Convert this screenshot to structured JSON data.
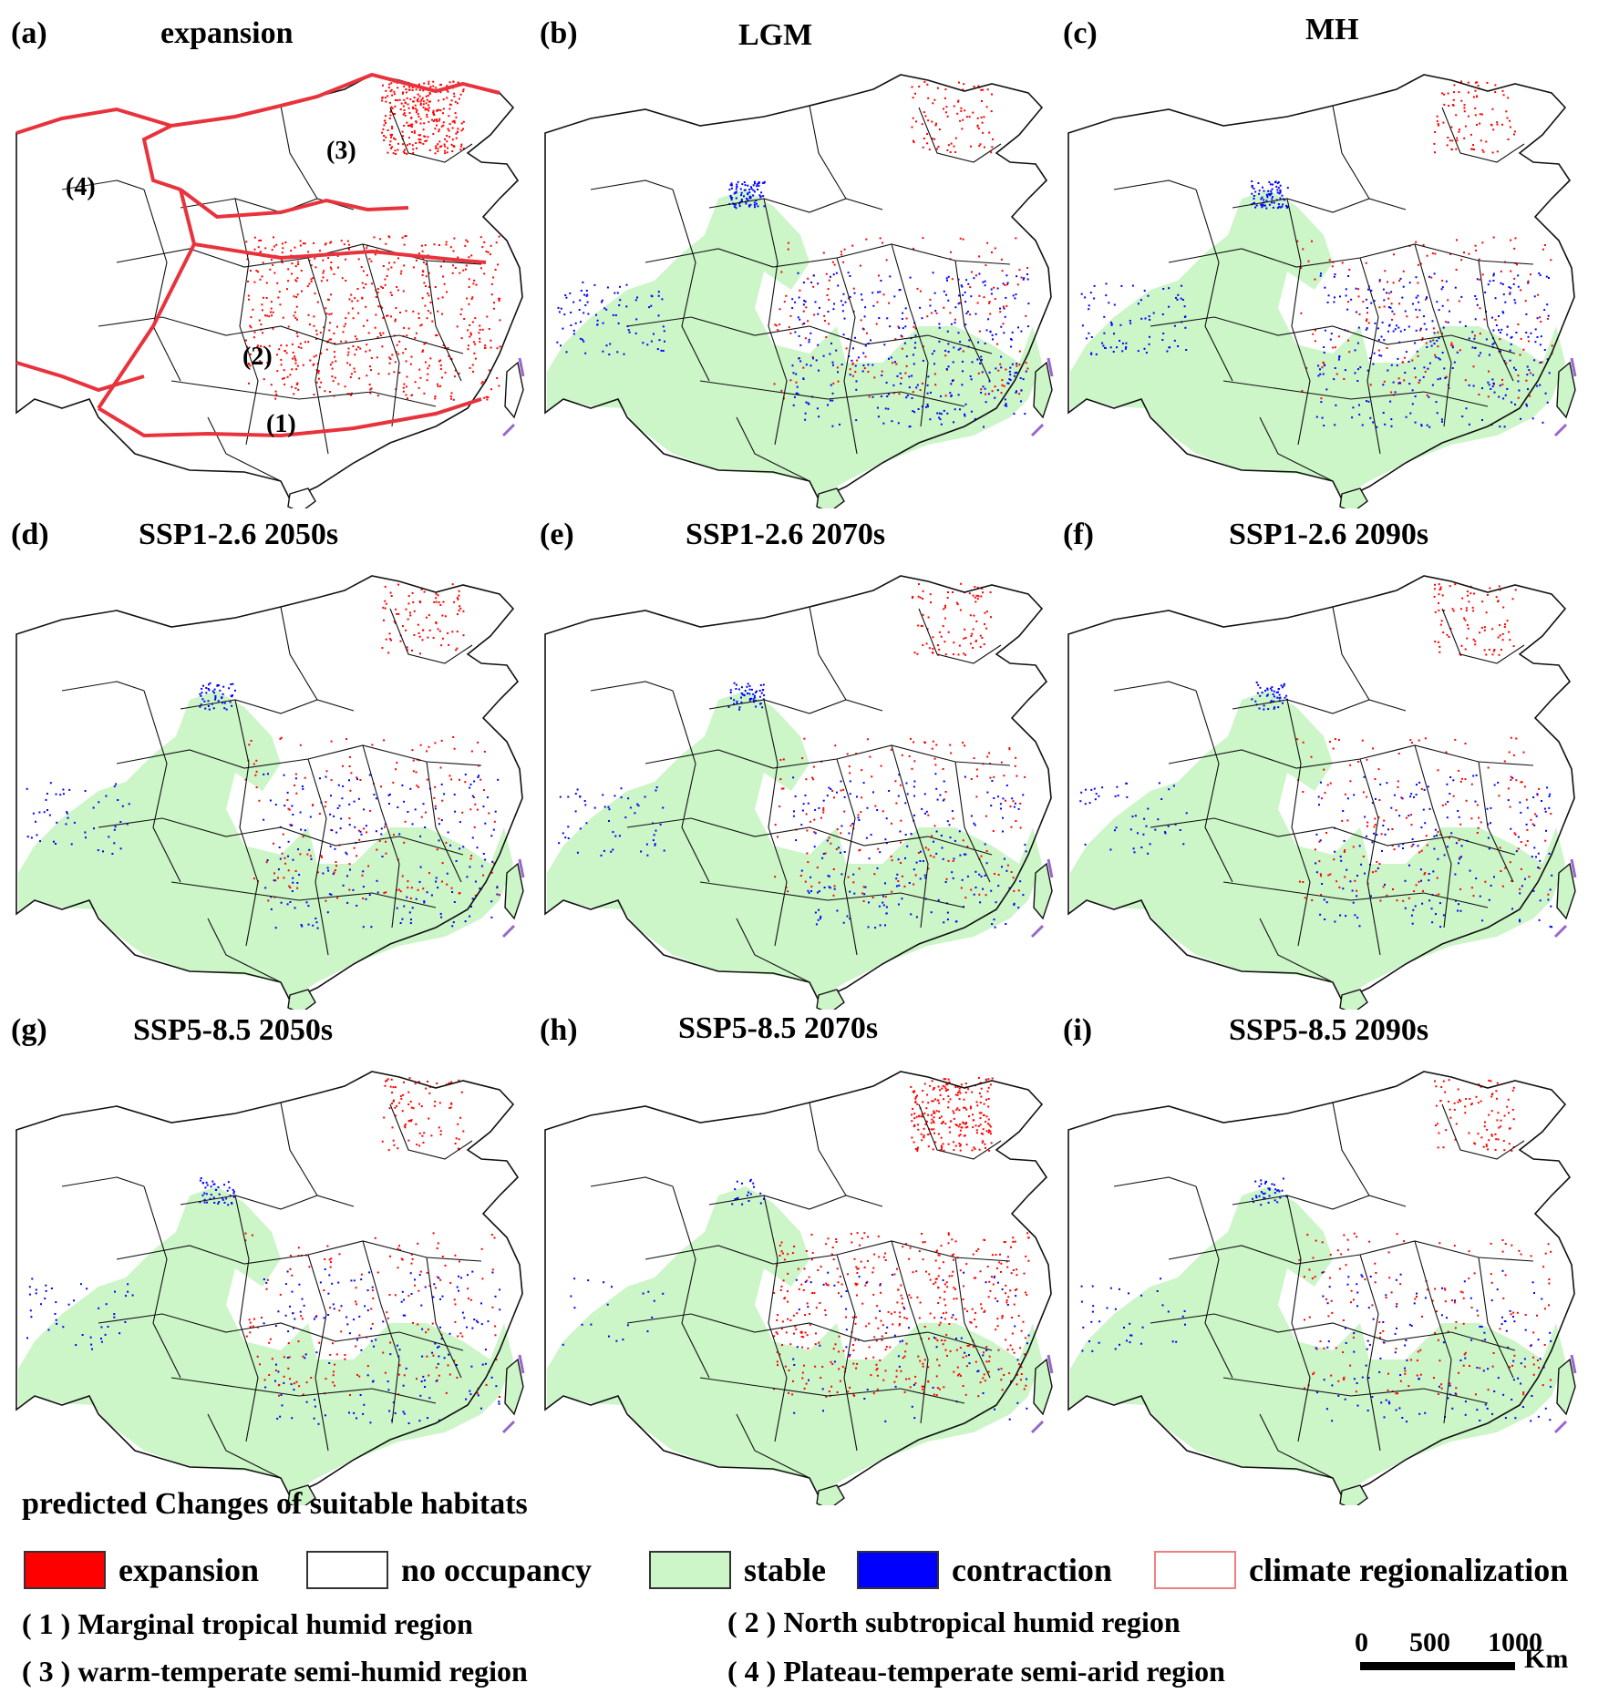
{
  "panels": [
    {
      "label": "(a)",
      "title": "expansion",
      "kind": "regionalization"
    },
    {
      "label": "(b)",
      "title": "LGM",
      "kind": "change"
    },
    {
      "label": "(c)",
      "title": "MH",
      "kind": "change"
    },
    {
      "label": "(d)",
      "title": "SSP1-2.6 2050s",
      "kind": "change"
    },
    {
      "label": "(e)",
      "title": "SSP1-2.6 2070s",
      "kind": "change"
    },
    {
      "label": "(f)",
      "title": "SSP1-2.6 2090s",
      "kind": "change"
    },
    {
      "label": "(g)",
      "title": "SSP5-8.5 2050s",
      "kind": "change"
    },
    {
      "label": "(h)",
      "title": "SSP5-8.5 2070s",
      "kind": "change"
    },
    {
      "label": "(i)",
      "title": "SSP5-8.5 2090s",
      "kind": "change"
    }
  ],
  "region_labels": [
    "(1)",
    "(2)",
    "(3)",
    "(4)"
  ],
  "legend": {
    "title": "predicted Changes of suitable habitats",
    "items": [
      {
        "label": "expansion",
        "fill": "#ff0000",
        "border": "#333333"
      },
      {
        "label": "no occupancy",
        "fill": "#ffffff",
        "border": "#333333"
      },
      {
        "label": "stable",
        "fill": "#ccf5c8",
        "border": "#333333"
      },
      {
        "label": "contraction",
        "fill": "#0000ff",
        "border": "#333333"
      },
      {
        "label": "climate regionalization",
        "fill": "#ffffff",
        "border": "#f08080"
      }
    ]
  },
  "regions": [
    "( 1 )  Marginal tropical humid region",
    "( 2 )  North subtropical humid region",
    "( 3 )  warm-temperate semi-humid region",
    "( 4 )  Plateau-temperate semi-arid region"
  ],
  "scale": {
    "ticks": [
      "0",
      "500",
      "1000"
    ],
    "unit": "Km"
  },
  "colors": {
    "expansion": "#ff0000",
    "stable": "#ccf5c8",
    "contraction": "#0000ff",
    "regionalization": "#e8323c",
    "boundary": "#111111",
    "island": "#9966cc"
  }
}
